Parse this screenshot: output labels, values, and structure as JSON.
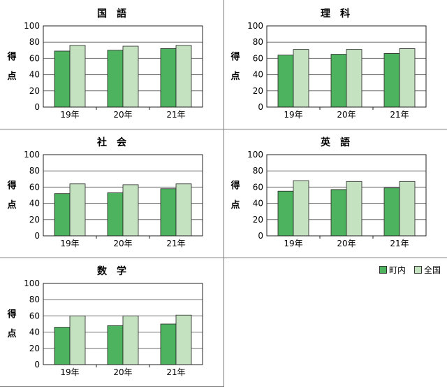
{
  "y_axis_label": "得点",
  "legend": [
    {
      "label": "町内",
      "color": "#4eb35e"
    },
    {
      "label": "全国",
      "color": "#c4e2c0"
    }
  ],
  "chart_data": [
    {
      "type": "bar",
      "title": "国　語",
      "categories": [
        "19年",
        "20年",
        "21年"
      ],
      "ylim": [
        0,
        100
      ],
      "yticks": [
        0,
        20,
        40,
        60,
        80,
        100
      ],
      "ylabel": "得点",
      "series": [
        {
          "name": "町内",
          "values": [
            69,
            70,
            72
          ]
        },
        {
          "name": "全国",
          "values": [
            76,
            75,
            76
          ]
        }
      ]
    },
    {
      "type": "bar",
      "title": "理　科",
      "categories": [
        "19年",
        "20年",
        "21年"
      ],
      "ylim": [
        0,
        100
      ],
      "yticks": [
        0,
        20,
        40,
        60,
        80,
        100
      ],
      "ylabel": "得点",
      "series": [
        {
          "name": "町内",
          "values": [
            64,
            65,
            66
          ]
        },
        {
          "name": "全国",
          "values": [
            71,
            71,
            72
          ]
        }
      ]
    },
    {
      "type": "bar",
      "title": "社　会",
      "categories": [
        "19年",
        "20年",
        "21年"
      ],
      "ylim": [
        0,
        100
      ],
      "yticks": [
        0,
        20,
        40,
        60,
        80,
        100
      ],
      "ylabel": "得点",
      "series": [
        {
          "name": "町内",
          "values": [
            52,
            53,
            58
          ]
        },
        {
          "name": "全国",
          "values": [
            64,
            63,
            64
          ]
        }
      ]
    },
    {
      "type": "bar",
      "title": "英　語",
      "categories": [
        "19年",
        "20年",
        "21年"
      ],
      "ylim": [
        0,
        100
      ],
      "yticks": [
        0,
        20,
        40,
        60,
        80,
        100
      ],
      "ylabel": "得点",
      "series": [
        {
          "name": "町内",
          "values": [
            55,
            57,
            59
          ]
        },
        {
          "name": "全国",
          "values": [
            68,
            67,
            67
          ]
        }
      ]
    },
    {
      "type": "bar",
      "title": "数　学",
      "categories": [
        "19年",
        "20年",
        "21年"
      ],
      "ylim": [
        0,
        100
      ],
      "yticks": [
        0,
        20,
        40,
        60,
        80,
        100
      ],
      "ylabel": "得点",
      "series": [
        {
          "name": "町内",
          "values": [
            46,
            48,
            50
          ]
        },
        {
          "name": "全国",
          "values": [
            60,
            60,
            61
          ]
        }
      ]
    }
  ]
}
